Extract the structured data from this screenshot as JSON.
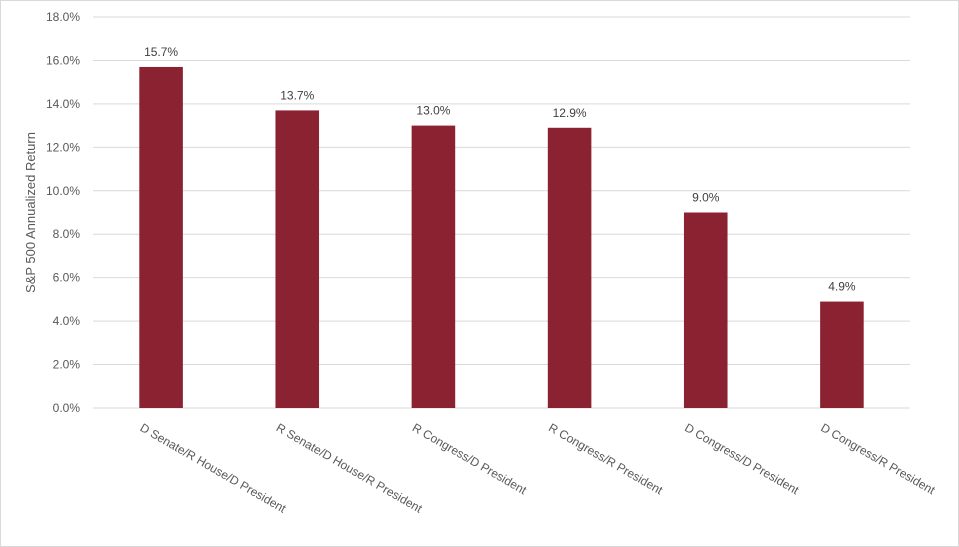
{
  "chart_data": {
    "type": "bar",
    "title": "",
    "xlabel": "",
    "ylabel": "S&P 500 Annualized Return",
    "categories": [
      "D Senate/R House/D President",
      "R Senate/D House/R President",
      "R Congress/D President",
      "R Congress/R President",
      "D Congress/D President",
      "D Congress/R President"
    ],
    "values": [
      15.7,
      13.7,
      13.0,
      12.9,
      9.0,
      4.9
    ],
    "data_labels": [
      "15.7%",
      "13.7%",
      "13.0%",
      "12.9%",
      "9.0%",
      "4.9%"
    ],
    "ylim": [
      0,
      18
    ],
    "yticks": [
      0,
      2,
      4,
      6,
      8,
      10,
      12,
      14,
      16,
      18
    ],
    "ytick_labels": [
      "0.0%",
      "2.0%",
      "4.0%",
      "6.0%",
      "8.0%",
      "10.0%",
      "12.0%",
      "14.0%",
      "16.0%",
      "18.0%"
    ],
    "grid": true,
    "legend": "none",
    "colors": {
      "bar": "#8b2232",
      "grid": "#d9d9d9",
      "text": "#595959"
    }
  }
}
